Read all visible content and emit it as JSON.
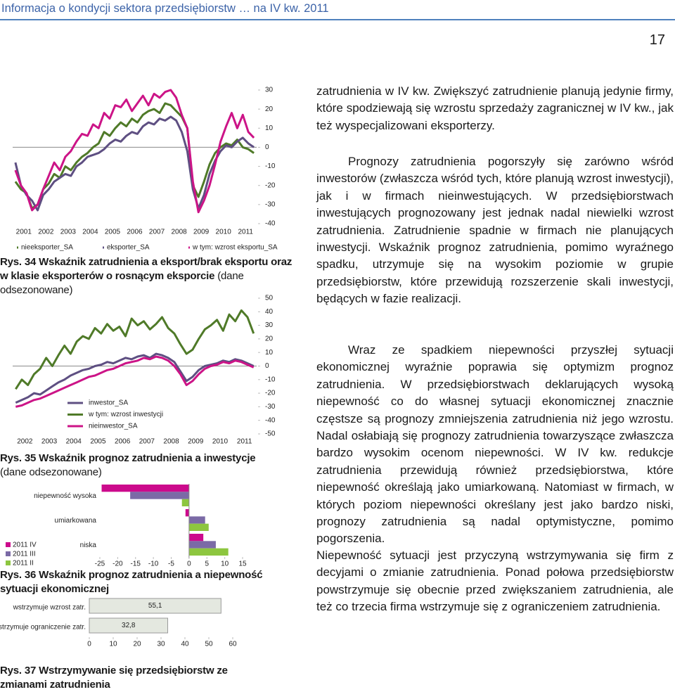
{
  "header": {
    "title": "Informacja o kondycji sektora przedsiębiorstw … na IV kw. 2011",
    "page_number": "17"
  },
  "chart_data": [
    {
      "type": "line",
      "title": "Rys. 34 Wskaźnik zatrudnienia a eksport/brak eksportu oraz w klasie eksporterów o rosnącym eksporcie",
      "subtitle": "(dane odsezonowane)",
      "categories": [
        "2001",
        null,
        null,
        null,
        "2002",
        null,
        null,
        null,
        "2003",
        null,
        null,
        null,
        "2004",
        null,
        null,
        null,
        "2005",
        null,
        null,
        null,
        "2006",
        null,
        null,
        null,
        "2007",
        null,
        null,
        null,
        "2008",
        null,
        null,
        null,
        "2009",
        null,
        null,
        null,
        "2010",
        null,
        null,
        null,
        "2011",
        null,
        null,
        null
      ],
      "series": [
        {
          "name": "nieeksporter_SA",
          "color": "#4f7a28",
          "values": [
            -18,
            -22,
            -24,
            -32,
            -30,
            -22,
            -19,
            -14,
            -16,
            -10,
            -12,
            -8,
            -5,
            -3,
            0,
            2,
            8,
            6,
            10,
            13,
            11,
            15,
            13,
            17,
            19,
            20,
            18,
            23,
            22,
            19,
            16,
            10,
            -20,
            -26,
            -18,
            -9,
            -3,
            0,
            2,
            1,
            4,
            0,
            -1,
            -3
          ]
        },
        {
          "name": "eksporter_SA",
          "color": "#5e4f82",
          "values": [
            -8,
            -20,
            -25,
            -28,
            -33,
            -25,
            -22,
            -18,
            -16,
            -14,
            -15,
            -10,
            -8,
            -5,
            -4,
            -3,
            -1,
            2,
            4,
            3,
            6,
            8,
            7,
            11,
            13,
            12,
            15,
            14,
            16,
            14,
            8,
            -2,
            -22,
            -32,
            -25,
            -14,
            -7,
            -2,
            1,
            0,
            3,
            5,
            2,
            0
          ]
        },
        {
          "name": "w tym: wzrost eksportu_SA",
          "color": "#cc1487",
          "values": [
            -12,
            -20,
            -24,
            -33,
            -30,
            -22,
            -15,
            -8,
            -12,
            -5,
            -2,
            3,
            7,
            6,
            12,
            10,
            18,
            15,
            22,
            21,
            25,
            19,
            23,
            27,
            22,
            28,
            26,
            29,
            30,
            26,
            17,
            10,
            -18,
            -34,
            -28,
            -20,
            -9,
            3,
            11,
            18,
            10,
            17,
            8,
            5
          ]
        }
      ],
      "ylim": [
        -40,
        30
      ],
      "yticks": [
        -40,
        -30,
        -20,
        -10,
        0,
        10,
        20,
        30
      ],
      "yaxis_position": "right",
      "legend": "bottom"
    },
    {
      "type": "line",
      "title": "Rys. 35 Wskaźnik prognoz zatrudnienia a inwestycje",
      "subtitle": "(dane odsezonowane)",
      "categories": [
        "2002",
        null,
        null,
        null,
        "2003",
        null,
        null,
        null,
        "2004",
        null,
        null,
        null,
        "2005",
        null,
        null,
        null,
        "2006",
        null,
        null,
        null,
        "2007",
        null,
        null,
        null,
        "2008",
        null,
        null,
        null,
        "2009",
        null,
        null,
        null,
        "2010",
        null,
        null,
        null,
        "2011",
        null,
        null,
        null
      ],
      "series": [
        {
          "name": "inwestor_SA",
          "color": "#5e4f82",
          "values": [
            -27,
            -25,
            -23,
            -20,
            -21,
            -18,
            -15,
            -12,
            -10,
            -7,
            -5,
            -3,
            -2,
            0,
            1,
            3,
            2,
            4,
            6,
            5,
            7,
            8,
            6,
            9,
            8,
            6,
            3,
            -4,
            -11,
            -8,
            -3,
            0,
            1,
            2,
            4,
            3,
            5,
            4,
            2,
            0
          ]
        },
        {
          "name": "w tym: wzrost inwestycji",
          "color": "#4f7a28",
          "values": [
            -17,
            -10,
            -14,
            -6,
            -2,
            6,
            0,
            8,
            15,
            9,
            18,
            22,
            20,
            28,
            24,
            31,
            26,
            29,
            22,
            35,
            30,
            33,
            27,
            31,
            36,
            28,
            24,
            16,
            9,
            12,
            20,
            27,
            30,
            34,
            26,
            38,
            33,
            41,
            36,
            24
          ]
        },
        {
          "name": "nieinwestor_SA",
          "color": "#cc1487",
          "values": [
            -30,
            -29,
            -27,
            -25,
            -24,
            -22,
            -20,
            -18,
            -16,
            -14,
            -12,
            -10,
            -8,
            -7,
            -5,
            -3,
            -2,
            0,
            2,
            3,
            4,
            6,
            5,
            7,
            6,
            4,
            0,
            -6,
            -14,
            -11,
            -6,
            -2,
            0,
            1,
            3,
            2,
            4,
            3,
            1,
            -1
          ]
        }
      ],
      "ylim": [
        -50,
        50
      ],
      "yticks": [
        -50,
        -40,
        -30,
        -20,
        -10,
        0,
        10,
        20,
        30,
        40,
        50
      ],
      "yaxis_position": "right",
      "legend": "lower left"
    },
    {
      "type": "barh",
      "title": "Rys. 36 Wskaźnik prognoz zatrudnienia a niepewność sytuacji ekonomicznej",
      "categories": [
        "niepewność wysoka",
        "umiarkowana",
        "niska"
      ],
      "series": [
        {
          "name": "2011 IV",
          "color": "#cc0a8c",
          "values": [
            -24.5,
            -1,
            4
          ]
        },
        {
          "name": "2011 III",
          "color": "#7b6aa6",
          "values": [
            -16.5,
            4.5,
            7.5
          ]
        },
        {
          "name": "2011 II",
          "color": "#8dc63f",
          "values": [
            -2,
            5.5,
            11
          ]
        }
      ],
      "xlim": [
        -25,
        15
      ],
      "xticks": [
        -25,
        -20,
        -15,
        -10,
        -5,
        0,
        5,
        10,
        15
      ],
      "legend": "lower left"
    },
    {
      "type": "barh",
      "title": "Rys. 37 Wstrzymywanie się przedsiębiorstw ze zmianami zatrudnienia",
      "categories": [
        "wstrzymuje wzrost zatr.",
        "wstrzymuje ograniczenie zatr."
      ],
      "values": [
        55.1,
        32.8
      ],
      "value_labels": [
        "55,1",
        "32,8"
      ],
      "color": "#e4e8e0",
      "xlim": [
        0,
        60
      ],
      "xticks": [
        0,
        10,
        20,
        30,
        40,
        50,
        60
      ]
    }
  ],
  "paragraphs": [
    "zatrudnienia w IV kw. Zwiększyć zatrudnienie planują jedynie firmy, które spodziewają się wzrostu sprzedaży zagranicznej w IV kw., jak też wyspecjalizowani eksporterzy.",
    "Prognozy zatrudnienia pogorszyły się zarówno wśród inwestorów (zwłaszcza wśród tych, które planują wzrost inwestycji), jak i w firmach nieinwestujących. W przedsiębiorstwach inwestujących prognozowany jest jednak nadal niewielki wzrost zatrudnienia. Zatrudnienie spadnie w firmach nie planujących inwestycji. Wskaźnik prognoz zatrudnienia, pomimo wyraźnego spadku, utrzymuje się na wysokim poziomie w grupie przedsiębiorstw, które przewidują rozszerzenie skali inwestycji, będących w fazie realizacji.",
    "Wraz ze spadkiem niepewności przyszłej sytuacji ekonomicznej wyraźnie poprawia się optymizm prognoz zatrudnienia. W przedsiębiorstwach deklarujących wysoką niepewność co do własnej sytuacji ekonomicznej znacznie częstsze są prognozy zmniejszenia zatrudnienia niż jego wzrostu. Nadal osłabiają się prognozy zatrudnienia towarzyszące zwłaszcza bardzo wysokim ocenom niepewności. W IV kw. redukcje zatrudnienia przewidują również przedsiębiorstwa, które niepewność określają jako umiarkowaną. Natomiast w firmach, w których poziom niepewności określany jest jako bardzo niski, prognozy zatrudnienia są nadal optymistyczne, pomimo pogorszenia.",
    "Niepewność sytuacji jest przyczyną wstrzymywania się firm z decyjami o zmianie zatrudnienia. Ponad połowa przedsiębiorstw powstrzymuje się obecnie przed zwiększaniem zatrudnienia, ale też co trzecia firma wstrzymuje się z ograniczeniem zatrudnienia."
  ]
}
